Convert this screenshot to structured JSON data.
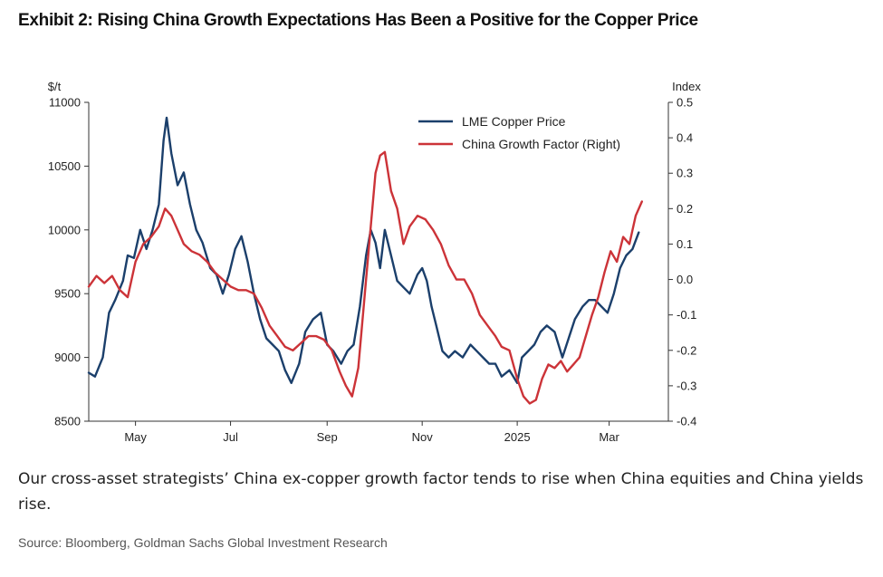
{
  "title": "Exhibit 2: Rising China Growth Expectations Has Been a Positive for the Copper Price",
  "caption": "Our cross-asset strategists’ China ex-copper growth factor tends to rise when China equities and China yields rise.",
  "source": "Source: Bloomberg, Goldman Sachs Global Investment Research",
  "colors": {
    "copper": "#1b3f6b",
    "china": "#cc3338",
    "axis": "#333333"
  },
  "chart_data": {
    "type": "line",
    "left_axis": {
      "label": "$/t",
      "min": 8500,
      "max": 11000,
      "ticks": [
        8500,
        9000,
        9500,
        10000,
        10500,
        11000
      ]
    },
    "right_axis": {
      "label": "Index",
      "min": -0.4,
      "max": 0.5,
      "ticks": [
        -0.4,
        -0.3,
        -0.2,
        -0.1,
        0.0,
        0.1,
        0.2,
        0.3,
        0.4,
        0.5
      ],
      "tick_labels": [
        "-0.4",
        "-0.3",
        "-0.2",
        "-0.1",
        "0.0",
        "0.1",
        "0.2",
        "0.3",
        "0.4",
        "0.5"
      ]
    },
    "x_range": [
      "2024-04-01",
      "2025-04-08"
    ],
    "x_ticks": [
      {
        "label": "May",
        "date": "2024-05-01"
      },
      {
        "label": "Jul",
        "date": "2024-07-01"
      },
      {
        "label": "Sep",
        "date": "2024-09-01"
      },
      {
        "label": "Nov",
        "date": "2024-11-01"
      },
      {
        "label": "2025",
        "date": "2025-01-01"
      },
      {
        "label": "Mar",
        "date": "2025-03-01"
      }
    ],
    "legend_position": "top-right",
    "grid": false,
    "series": [
      {
        "name": "LME Copper Price",
        "axis": "left",
        "points": [
          [
            "2024-04-01",
            8880
          ],
          [
            "2024-04-05",
            8850
          ],
          [
            "2024-04-10",
            9000
          ],
          [
            "2024-04-14",
            9350
          ],
          [
            "2024-04-18",
            9450
          ],
          [
            "2024-04-23",
            9600
          ],
          [
            "2024-04-26",
            9800
          ],
          [
            "2024-04-30",
            9780
          ],
          [
            "2024-05-04",
            10000
          ],
          [
            "2024-05-08",
            9850
          ],
          [
            "2024-05-12",
            10000
          ],
          [
            "2024-05-16",
            10200
          ],
          [
            "2024-05-19",
            10700
          ],
          [
            "2024-05-21",
            10880
          ],
          [
            "2024-05-24",
            10600
          ],
          [
            "2024-05-28",
            10350
          ],
          [
            "2024-06-01",
            10450
          ],
          [
            "2024-06-05",
            10200
          ],
          [
            "2024-06-09",
            10000
          ],
          [
            "2024-06-13",
            9900
          ],
          [
            "2024-06-18",
            9700
          ],
          [
            "2024-06-22",
            9650
          ],
          [
            "2024-06-26",
            9500
          ],
          [
            "2024-06-30",
            9650
          ],
          [
            "2024-07-04",
            9850
          ],
          [
            "2024-07-08",
            9950
          ],
          [
            "2024-07-12",
            9750
          ],
          [
            "2024-07-16",
            9500
          ],
          [
            "2024-07-20",
            9300
          ],
          [
            "2024-07-24",
            9150
          ],
          [
            "2024-07-28",
            9100
          ],
          [
            "2024-08-01",
            9050
          ],
          [
            "2024-08-05",
            8900
          ],
          [
            "2024-08-09",
            8800
          ],
          [
            "2024-08-14",
            8950
          ],
          [
            "2024-08-18",
            9200
          ],
          [
            "2024-08-23",
            9300
          ],
          [
            "2024-08-28",
            9350
          ],
          [
            "2024-09-01",
            9100
          ],
          [
            "2024-09-05",
            9050
          ],
          [
            "2024-09-10",
            8950
          ],
          [
            "2024-09-14",
            9050
          ],
          [
            "2024-09-18",
            9100
          ],
          [
            "2024-09-22",
            9400
          ],
          [
            "2024-09-26",
            9800
          ],
          [
            "2024-09-29",
            10000
          ],
          [
            "2024-10-02",
            9900
          ],
          [
            "2024-10-05",
            9700
          ],
          [
            "2024-10-08",
            10000
          ],
          [
            "2024-10-12",
            9800
          ],
          [
            "2024-10-16",
            9600
          ],
          [
            "2024-10-20",
            9550
          ],
          [
            "2024-10-24",
            9500
          ],
          [
            "2024-10-29",
            9650
          ],
          [
            "2024-11-01",
            9700
          ],
          [
            "2024-11-04",
            9600
          ],
          [
            "2024-11-07",
            9400
          ],
          [
            "2024-11-10",
            9250
          ],
          [
            "2024-11-14",
            9050
          ],
          [
            "2024-11-18",
            9000
          ],
          [
            "2024-11-22",
            9050
          ],
          [
            "2024-11-27",
            9000
          ],
          [
            "2024-12-02",
            9100
          ],
          [
            "2024-12-06",
            9050
          ],
          [
            "2024-12-10",
            9000
          ],
          [
            "2024-12-14",
            8950
          ],
          [
            "2024-12-18",
            8950
          ],
          [
            "2024-12-22",
            8850
          ],
          [
            "2024-12-27",
            8900
          ],
          [
            "2025-01-01",
            8800
          ],
          [
            "2025-01-04",
            9000
          ],
          [
            "2025-01-08",
            9050
          ],
          [
            "2025-01-12",
            9100
          ],
          [
            "2025-01-16",
            9200
          ],
          [
            "2025-01-20",
            9250
          ],
          [
            "2025-01-25",
            9200
          ],
          [
            "2025-01-30",
            9000
          ],
          [
            "2025-02-03",
            9150
          ],
          [
            "2025-02-07",
            9300
          ],
          [
            "2025-02-12",
            9400
          ],
          [
            "2025-02-16",
            9450
          ],
          [
            "2025-02-20",
            9450
          ],
          [
            "2025-02-24",
            9400
          ],
          [
            "2025-02-28",
            9350
          ],
          [
            "2025-03-04",
            9500
          ],
          [
            "2025-03-08",
            9700
          ],
          [
            "2025-03-12",
            9800
          ],
          [
            "2025-03-16",
            9850
          ],
          [
            "2025-03-20",
            9980
          ]
        ]
      },
      {
        "name": "China Growth Factor (Right)",
        "axis": "right",
        "points": [
          [
            "2024-04-01",
            -0.02
          ],
          [
            "2024-04-06",
            0.01
          ],
          [
            "2024-04-11",
            -0.01
          ],
          [
            "2024-04-16",
            0.01
          ],
          [
            "2024-04-21",
            -0.03
          ],
          [
            "2024-04-26",
            -0.05
          ],
          [
            "2024-05-01",
            0.05
          ],
          [
            "2024-05-06",
            0.1
          ],
          [
            "2024-05-11",
            0.12
          ],
          [
            "2024-05-16",
            0.15
          ],
          [
            "2024-05-20",
            0.2
          ],
          [
            "2024-05-24",
            0.18
          ],
          [
            "2024-05-28",
            0.14
          ],
          [
            "2024-06-01",
            0.1
          ],
          [
            "2024-06-06",
            0.08
          ],
          [
            "2024-06-11",
            0.07
          ],
          [
            "2024-06-16",
            0.05
          ],
          [
            "2024-06-21",
            0.02
          ],
          [
            "2024-06-26",
            0.0
          ],
          [
            "2024-07-01",
            -0.02
          ],
          [
            "2024-07-06",
            -0.03
          ],
          [
            "2024-07-11",
            -0.03
          ],
          [
            "2024-07-16",
            -0.04
          ],
          [
            "2024-07-21",
            -0.08
          ],
          [
            "2024-07-26",
            -0.13
          ],
          [
            "2024-07-31",
            -0.16
          ],
          [
            "2024-08-05",
            -0.19
          ],
          [
            "2024-08-10",
            -0.2
          ],
          [
            "2024-08-15",
            -0.18
          ],
          [
            "2024-08-20",
            -0.16
          ],
          [
            "2024-08-25",
            -0.16
          ],
          [
            "2024-08-30",
            -0.17
          ],
          [
            "2024-09-04",
            -0.2
          ],
          [
            "2024-09-09",
            -0.26
          ],
          [
            "2024-09-13",
            -0.3
          ],
          [
            "2024-09-17",
            -0.33
          ],
          [
            "2024-09-21",
            -0.25
          ],
          [
            "2024-09-25",
            -0.05
          ],
          [
            "2024-09-29",
            0.15
          ],
          [
            "2024-10-02",
            0.3
          ],
          [
            "2024-10-05",
            0.35
          ],
          [
            "2024-10-08",
            0.36
          ],
          [
            "2024-10-12",
            0.25
          ],
          [
            "2024-10-16",
            0.2
          ],
          [
            "2024-10-20",
            0.1
          ],
          [
            "2024-10-24",
            0.15
          ],
          [
            "2024-10-29",
            0.18
          ],
          [
            "2024-11-03",
            0.17
          ],
          [
            "2024-11-08",
            0.14
          ],
          [
            "2024-11-13",
            0.1
          ],
          [
            "2024-11-18",
            0.04
          ],
          [
            "2024-11-23",
            0.0
          ],
          [
            "2024-11-28",
            0.0
          ],
          [
            "2024-12-03",
            -0.04
          ],
          [
            "2024-12-08",
            -0.1
          ],
          [
            "2024-12-13",
            -0.13
          ],
          [
            "2024-12-18",
            -0.16
          ],
          [
            "2024-12-22",
            -0.19
          ],
          [
            "2024-12-27",
            -0.2
          ],
          [
            "2025-01-01",
            -0.28
          ],
          [
            "2025-01-05",
            -0.33
          ],
          [
            "2025-01-09",
            -0.35
          ],
          [
            "2025-01-13",
            -0.34
          ],
          [
            "2025-01-17",
            -0.28
          ],
          [
            "2025-01-21",
            -0.24
          ],
          [
            "2025-01-25",
            -0.25
          ],
          [
            "2025-01-29",
            -0.23
          ],
          [
            "2025-02-02",
            -0.26
          ],
          [
            "2025-02-06",
            -0.24
          ],
          [
            "2025-02-10",
            -0.22
          ],
          [
            "2025-02-14",
            -0.16
          ],
          [
            "2025-02-18",
            -0.1
          ],
          [
            "2025-02-22",
            -0.05
          ],
          [
            "2025-02-26",
            0.02
          ],
          [
            "2025-03-02",
            0.08
          ],
          [
            "2025-03-06",
            0.05
          ],
          [
            "2025-03-10",
            0.12
          ],
          [
            "2025-03-14",
            0.1
          ],
          [
            "2025-03-18",
            0.18
          ],
          [
            "2025-03-22",
            0.22
          ]
        ]
      }
    ]
  }
}
